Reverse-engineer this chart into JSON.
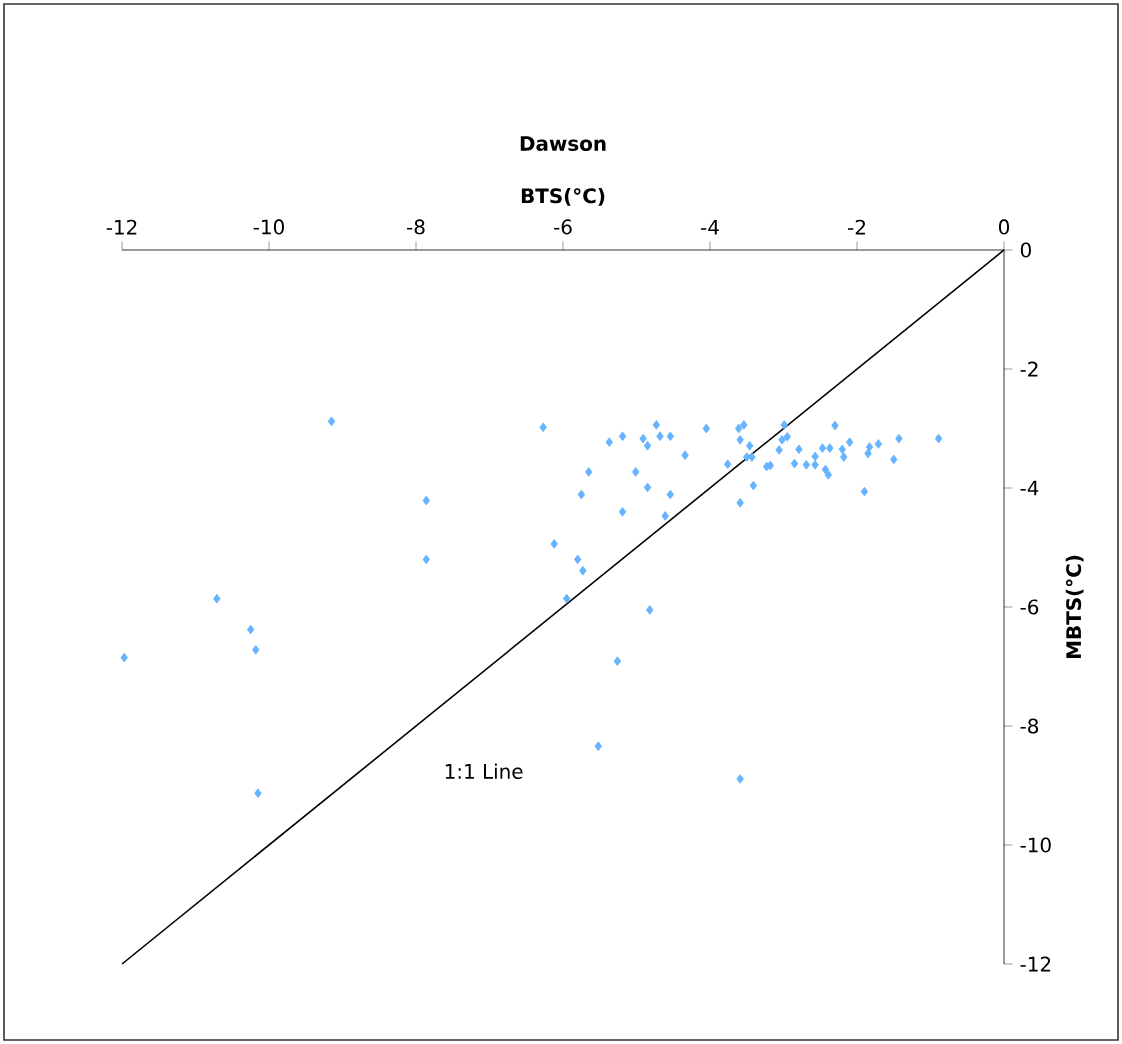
{
  "chart_data": {
    "type": "scatter",
    "title": "Dawson",
    "xlabel": "BTS(°C)",
    "ylabel": "MBTS(°C)",
    "xlim": [
      -12,
      0
    ],
    "ylim": [
      -12,
      0
    ],
    "xticks": [
      -12,
      -10,
      -8,
      -6,
      -4,
      -2,
      0
    ],
    "yticks": [
      -12,
      -10,
      -8,
      -6,
      -4,
      -2,
      0
    ],
    "grid": false,
    "annotations": [
      "1:1 Line"
    ],
    "series": [
      {
        "marker": "diamond",
        "color": "#66b3ff",
        "x": [
          -9.15,
          -6.27,
          -7.86,
          -6.12,
          -7.86,
          -10.71,
          -10.25,
          -10.18,
          -11.97,
          -10.15,
          -5.8,
          -5.73,
          -5.95,
          -5.75,
          -5.65,
          -5.37,
          -5.19,
          -5.01,
          -5.19,
          -4.91,
          -4.85,
          -4.73,
          -4.68,
          -4.54,
          -4.85,
          -4.54,
          -4.61,
          -4.82,
          -5.26,
          -5.52,
          -4.34,
          -4.05,
          -3.61,
          -3.54,
          -3.59,
          -3.76,
          -3.46,
          -3.5,
          -3.43,
          -3.59,
          -3.41,
          -3.59,
          -3.23,
          -3.18,
          -3.06,
          -3.02,
          -2.99,
          -2.95,
          -2.85,
          -2.79,
          -2.69,
          -2.57,
          -2.57,
          -2.47,
          -2.37,
          -2.3,
          -2.43,
          -2.39,
          -2.2,
          -2.18,
          -2.1,
          -1.85,
          -1.83,
          -1.71,
          -1.9,
          -1.5,
          -1.43,
          -0.89
        ],
        "values": [
          -2.88,
          -2.98,
          -4.21,
          -4.94,
          -5.2,
          -5.86,
          -6.38,
          -6.72,
          -6.85,
          -9.13,
          -5.2,
          -5.39,
          -5.86,
          -4.11,
          -3.73,
          -3.23,
          -3.13,
          -3.73,
          -4.4,
          -3.17,
          -3.29,
          -2.94,
          -3.13,
          -3.13,
          -3.99,
          -4.11,
          -4.47,
          -6.05,
          -6.91,
          -8.34,
          -3.45,
          -3.0,
          -3.0,
          -2.94,
          -3.19,
          -3.6,
          -3.29,
          -3.48,
          -3.48,
          -4.25,
          -3.96,
          -8.89,
          -3.64,
          -3.62,
          -3.36,
          -3.19,
          -2.94,
          -3.14,
          -3.59,
          -3.35,
          -3.61,
          -3.61,
          -3.47,
          -3.33,
          -3.33,
          -2.95,
          -3.69,
          -3.78,
          -3.35,
          -3.48,
          -3.23,
          -3.42,
          -3.31,
          -3.26,
          -4.06,
          -3.52,
          -3.17,
          -3.17
        ]
      },
      {
        "type": "line",
        "marker": "none",
        "color": "#000000",
        "x": [
          -12,
          0
        ],
        "values": [
          -12,
          0
        ]
      }
    ]
  }
}
